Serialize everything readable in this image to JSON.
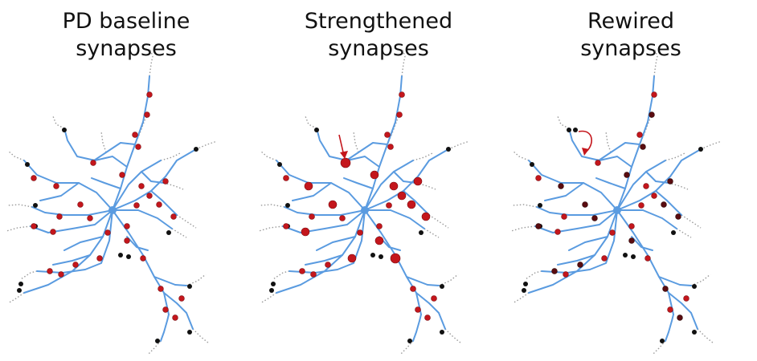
{
  "panels": [
    {
      "id": "baseline",
      "title_line1": "PD baseline",
      "title_line2": "synapses",
      "variant": "baseline"
    },
    {
      "id": "strengthened",
      "title_line1": "Strengthened",
      "title_line2": "synapses",
      "variant": "strengthened"
    },
    {
      "id": "rewired",
      "title_line1": "Rewired",
      "title_line2": "synapses",
      "variant": "rewired"
    }
  ],
  "colors": {
    "dendrite": "#5a9be0",
    "axon": "#9a9a9a",
    "synapse_red": "#c4161c",
    "synapse_black": "#111111",
    "arrow": "#c4161c"
  }
}
